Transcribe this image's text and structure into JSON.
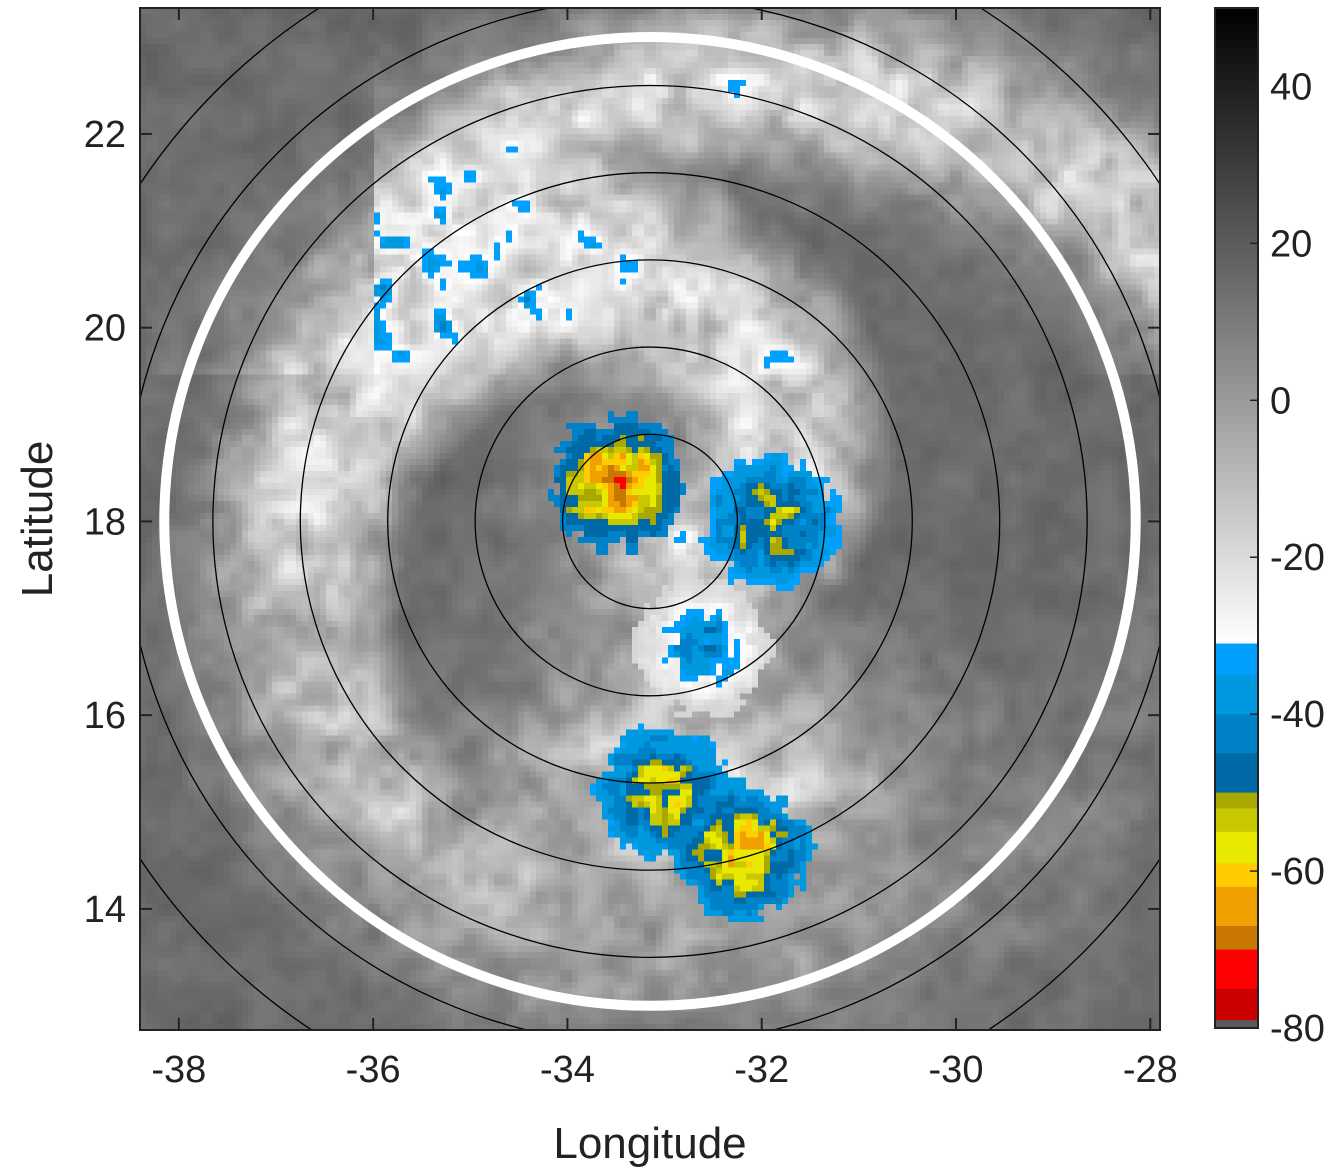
{
  "chart_data": {
    "type": "heatmap",
    "title": "",
    "top_text": "",
    "xlabel": "Longitude",
    "ylabel": "Latitude",
    "xlim": [
      -38.4,
      -27.9
    ],
    "ylim": [
      12.75,
      23.3
    ],
    "xticks": [
      -38,
      -36,
      -34,
      -32,
      -30,
      -28
    ],
    "yticks": [
      14,
      16,
      18,
      20,
      22
    ],
    "grid": false,
    "center": {
      "lon": -33.15,
      "lat": 18.0
    },
    "radius_rings_deg": [
      0.9,
      1.8,
      2.7,
      3.6,
      4.5,
      5.4,
      6.3
    ],
    "highlight_ring_deg": 5.0,
    "colorbar": {
      "position": "right",
      "range": [
        -80,
        50
      ],
      "ticks": [
        40,
        20,
        0,
        -20,
        -40,
        -60,
        -80
      ],
      "segments": [
        {
          "from": -80,
          "to": -78.5,
          "color": "#5a5a5a"
        },
        {
          "from": -78.5,
          "to": -75,
          "color": "#cc0000"
        },
        {
          "from": -75,
          "to": -70,
          "color": "#ff0000"
        },
        {
          "from": -70,
          "to": -67,
          "color": "#c87800"
        },
        {
          "from": -67,
          "to": -62,
          "color": "#f0a000"
        },
        {
          "from": -62,
          "to": -59,
          "color": "#ffcc00"
        },
        {
          "from": -59,
          "to": -55,
          "color": "#e8e800"
        },
        {
          "from": -55,
          "to": -52,
          "color": "#c8c800"
        },
        {
          "from": -52,
          "to": -50,
          "color": "#a8a800"
        },
        {
          "from": -50,
          "to": -45,
          "color": "#006aa6"
        },
        {
          "from": -45,
          "to": -40,
          "color": "#0082c8"
        },
        {
          "from": -40,
          "to": -35,
          "color": "#0099e0"
        },
        {
          "from": -35,
          "to": -31,
          "color": "#00a0ff"
        },
        {
          "from": -31,
          "to": 50,
          "color": "gray-ramp"
        }
      ]
    },
    "field_description": {
      "background_bt": 15,
      "cold_cloud_bt": -22,
      "convective_clusters": [
        {
          "lon": -33.5,
          "lat": 18.4,
          "min_bt": -65
        },
        {
          "lon": -31.9,
          "lat": 18.0,
          "min_bt": -55
        },
        {
          "lon": -33.0,
          "lat": 15.2,
          "min_bt": -57
        },
        {
          "lon": -32.2,
          "lat": 14.6,
          "min_bt": -60
        },
        {
          "lon": -32.6,
          "lat": 16.7,
          "min_bt": -40
        }
      ]
    }
  }
}
